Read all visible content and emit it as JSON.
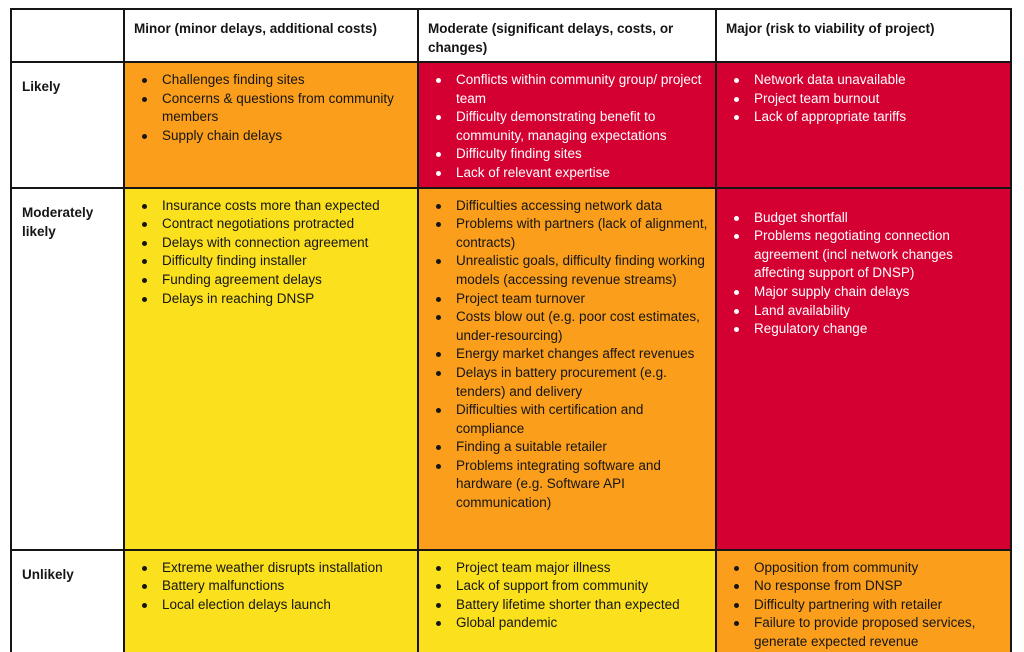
{
  "colors": {
    "yellow": "#FBE01E",
    "orange": "#FA9E1B",
    "red": "#D50032",
    "border": "#151515",
    "text_dark": "#151515",
    "text_light": "#FFFFFF"
  },
  "table": {
    "corner_label": "",
    "columns": [
      {
        "label": "Minor (minor delays, additional costs)"
      },
      {
        "label": "Moderate (significant delays, costs, or changes)"
      },
      {
        "label": "Major (risk to viability of project)"
      }
    ],
    "rows": [
      {
        "label": "Likely",
        "cells": {
          "minor": {
            "severity": "orange",
            "items": [
              "Challenges finding sites",
              "Concerns & questions from community members",
              "Supply chain delays"
            ]
          },
          "moderate": {
            "severity": "red",
            "items": [
              "Conflicts within community group/ project team",
              "Difficulty demonstrating benefit to community, managing expectations",
              "Difficulty finding sites",
              "Lack of relevant expertise"
            ]
          },
          "major": {
            "severity": "red",
            "items": [
              "Network data unavailable",
              "Project team burnout",
              "Lack of appropriate tariffs"
            ]
          }
        }
      },
      {
        "label": "Moderately likely",
        "cells": {
          "minor": {
            "severity": "yellow",
            "items": [
              "Insurance costs more than expected",
              "Contract negotiations protracted",
              "Delays with connection agreement",
              "Difficulty finding installer",
              "Funding agreement delays",
              "Delays in reaching DNSP"
            ]
          },
          "moderate": {
            "severity": "orange",
            "items": [
              "Difficulties accessing network data",
              "Problems with partners (lack of alignment, contracts)",
              "Unrealistic goals, difficulty finding working models (accessing revenue streams)",
              "Project team turnover",
              "Costs blow out (e.g. poor cost estimates, under-resourcing)",
              "Energy market changes affect revenues",
              "Delays in battery procurement (e.g. tenders) and delivery",
              "Difficulties with certification and compliance",
              "Finding a suitable retailer",
              "Problems integrating software and hardware (e.g. Software API communication)"
            ]
          },
          "major": {
            "severity": "red",
            "items": [
              "Budget shortfall",
              "Problems negotiating connection agreement (incl network changes affecting support of DNSP)",
              "Major supply chain delays",
              "Land availability",
              "Regulatory change"
            ]
          }
        }
      },
      {
        "label": "Unlikely",
        "cells": {
          "minor": {
            "severity": "yellow",
            "items": [
              "Extreme weather disrupts installation",
              "Battery malfunctions",
              "Local election delays launch"
            ]
          },
          "moderate": {
            "severity": "yellow",
            "items": [
              "Project team major illness",
              "Lack of support from community",
              "Battery lifetime shorter than expected",
              "Global pandemic"
            ]
          },
          "major": {
            "severity": "orange",
            "items": [
              "Opposition from community",
              "No response from DNSP",
              "Difficulty partnering with retailer",
              "Failure to provide proposed services, generate expected revenue"
            ]
          }
        }
      }
    ]
  }
}
